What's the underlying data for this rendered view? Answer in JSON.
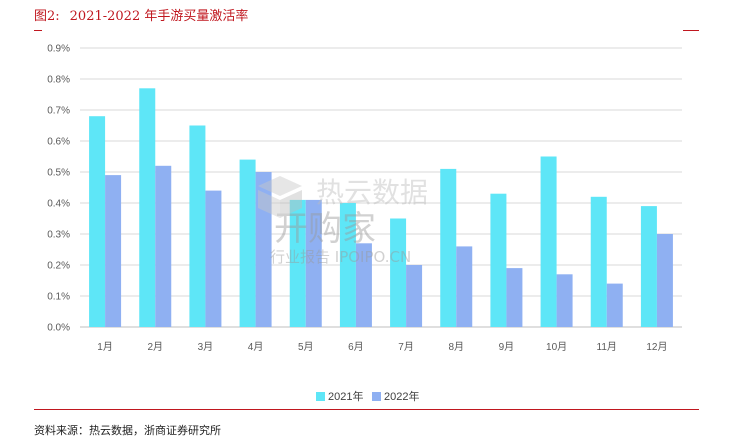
{
  "header": {
    "figure_number": "图2:",
    "title": "2021-2022 年手游买量激活率"
  },
  "footer": {
    "source": "资料来源：热云数据，浙商证券研究所"
  },
  "colors": {
    "accent": "#c0171f",
    "series_2021": "#5ee6f7",
    "series_2022": "#8fb0f2",
    "grid": "#d9d9d9"
  },
  "watermark": {
    "brand": "热云数据",
    "logo": "开购家",
    "sub": "行业报告 IPOIPO.CN"
  },
  "chart_data": {
    "type": "bar",
    "title": "",
    "xlabel": "",
    "ylabel": "",
    "categories": [
      "1月",
      "2月",
      "3月",
      "4月",
      "5月",
      "6月",
      "7月",
      "8月",
      "9月",
      "10月",
      "11月",
      "12月"
    ],
    "series": [
      {
        "name": "2021年",
        "values": [
          0.68,
          0.77,
          0.65,
          0.54,
          0.41,
          0.4,
          0.35,
          0.51,
          0.43,
          0.55,
          0.42,
          0.39
        ]
      },
      {
        "name": "2022年",
        "values": [
          0.49,
          0.52,
          0.44,
          0.5,
          0.41,
          0.27,
          0.2,
          0.26,
          0.19,
          0.17,
          0.14,
          0.3
        ]
      }
    ],
    "ylim": [
      0,
      0.9
    ],
    "yticks": [
      "0.0%",
      "0.1%",
      "0.2%",
      "0.3%",
      "0.4%",
      "0.5%",
      "0.6%",
      "0.7%",
      "0.8%",
      "0.9%"
    ],
    "grid": true,
    "legend_position": "bottom"
  }
}
